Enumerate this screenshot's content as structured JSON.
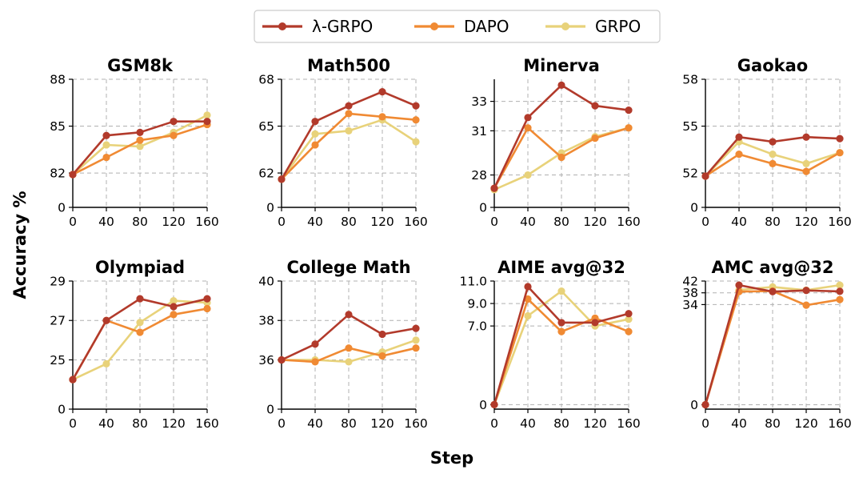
{
  "legend": {
    "entries": [
      {
        "name": "λ-GRPO",
        "color": "#B23A2B"
      },
      {
        "name": "DAPO",
        "color": "#F08A33"
      },
      {
        "name": "GRPO",
        "color": "#E8D27A"
      }
    ]
  },
  "xlabel": "Step",
  "ylabel": "Accuracy %",
  "chart_data": [
    {
      "type": "line",
      "title": "GSM8k",
      "x": [
        0,
        40,
        80,
        120,
        160
      ],
      "xticks": [
        "0",
        "40",
        "80",
        "120",
        "160"
      ],
      "yticks": [
        82,
        85,
        88
      ],
      "ytick_labels": [
        "82",
        "85",
        "88"
      ],
      "zero_label": "0",
      "ylim": [
        79.8,
        88
      ],
      "series": [
        {
          "name": "λ-GRPO",
          "values": [
            81.9,
            84.4,
            84.6,
            85.3,
            85.3
          ]
        },
        {
          "name": "DAPO",
          "values": [
            81.9,
            83.0,
            84.1,
            84.4,
            85.1
          ]
        },
        {
          "name": "GRPO",
          "values": [
            81.9,
            83.8,
            83.7,
            84.6,
            85.7
          ]
        }
      ]
    },
    {
      "type": "line",
      "title": "Math500",
      "x": [
        0,
        40,
        80,
        120,
        160
      ],
      "xticks": [
        "0",
        "40",
        "80",
        "120",
        "160"
      ],
      "yticks": [
        62,
        65,
        68
      ],
      "ytick_labels": [
        "62",
        "65",
        "68"
      ],
      "zero_label": "0",
      "ylim": [
        59.8,
        68
      ],
      "series": [
        {
          "name": "λ-GRPO",
          "values": [
            61.6,
            65.3,
            66.3,
            67.2,
            66.3
          ]
        },
        {
          "name": "DAPO",
          "values": [
            61.6,
            63.8,
            65.8,
            65.6,
            65.4
          ]
        },
        {
          "name": "GRPO",
          "values": [
            61.6,
            64.5,
            64.7,
            65.4,
            64.0
          ]
        }
      ]
    },
    {
      "type": "line",
      "title": "Minerva",
      "x": [
        0,
        40,
        80,
        120,
        160
      ],
      "xticks": [
        "0",
        "40",
        "80",
        "120",
        "160"
      ],
      "yticks": [
        28,
        31,
        33
      ],
      "ytick_labels": [
        "28",
        "31",
        "33"
      ],
      "zero_label": "0",
      "ylim": [
        25.8,
        34.5
      ],
      "series": [
        {
          "name": "λ-GRPO",
          "values": [
            27.1,
            31.9,
            34.1,
            32.7,
            32.4
          ]
        },
        {
          "name": "DAPO",
          "values": [
            27.1,
            31.2,
            29.2,
            30.5,
            31.2
          ]
        },
        {
          "name": "GRPO",
          "values": [
            27.0,
            28.0,
            29.5,
            30.6,
            31.2
          ]
        }
      ]
    },
    {
      "type": "line",
      "title": "Gaokao",
      "x": [
        0,
        40,
        80,
        120,
        160
      ],
      "xticks": [
        "0",
        "40",
        "80",
        "120",
        "160"
      ],
      "yticks": [
        52,
        55,
        58
      ],
      "ytick_labels": [
        "52",
        "55",
        "58"
      ],
      "zero_label": "0",
      "ylim": [
        49.8,
        58
      ],
      "series": [
        {
          "name": "λ-GRPO",
          "values": [
            51.8,
            54.3,
            54.0,
            54.3,
            54.2
          ]
        },
        {
          "name": "DAPO",
          "values": [
            51.8,
            53.2,
            52.6,
            52.1,
            53.3
          ]
        },
        {
          "name": "GRPO",
          "values": [
            51.8,
            54.0,
            53.2,
            52.6,
            53.3
          ]
        }
      ]
    },
    {
      "type": "line",
      "title": "Olympiad",
      "x": [
        0,
        40,
        80,
        120,
        160
      ],
      "xticks": [
        "0",
        "40",
        "80",
        "120",
        "160"
      ],
      "yticks": [
        25,
        27,
        29
      ],
      "ytick_labels": [
        "25",
        "27",
        "29"
      ],
      "zero_label": "0",
      "ylim": [
        22.5,
        29
      ],
      "series": [
        {
          "name": "λ-GRPO",
          "values": [
            24.0,
            27.0,
            28.1,
            27.7,
            28.1
          ]
        },
        {
          "name": "DAPO",
          "values": [
            24.0,
            27.0,
            26.4,
            27.3,
            27.6
          ]
        },
        {
          "name": "GRPO",
          "values": [
            24.0,
            24.8,
            26.9,
            28.0,
            27.9
          ]
        }
      ]
    },
    {
      "type": "line",
      "title": "College Math",
      "x": [
        0,
        40,
        80,
        120,
        160
      ],
      "xticks": [
        "0",
        "40",
        "80",
        "120",
        "160"
      ],
      "yticks": [
        36,
        38,
        40
      ],
      "ytick_labels": [
        "36",
        "38",
        "40"
      ],
      "zero_label": "0",
      "ylim": [
        33.5,
        40
      ],
      "series": [
        {
          "name": "λ-GRPO",
          "values": [
            36.0,
            36.8,
            38.3,
            37.3,
            37.6
          ]
        },
        {
          "name": "DAPO",
          "values": [
            36.0,
            35.9,
            36.6,
            36.2,
            36.6
          ]
        },
        {
          "name": "GRPO",
          "values": [
            36.0,
            36.0,
            35.9,
            36.4,
            37.0
          ]
        }
      ]
    },
    {
      "type": "line",
      "title": "AIME avg@32",
      "x": [
        0,
        40,
        80,
        120,
        160
      ],
      "xticks": [
        "0",
        "40",
        "80",
        "120",
        "160"
      ],
      "yticks": [
        0,
        7.0,
        9.0,
        11.0
      ],
      "ytick_labels": [
        "0",
        "7.0",
        "9.0",
        "11.0"
      ],
      "zero_label": "",
      "ylim": [
        -0.4,
        11.0
      ],
      "series": [
        {
          "name": "λ-GRPO",
          "values": [
            0,
            10.5,
            7.3,
            7.3,
            8.1
          ]
        },
        {
          "name": "DAPO",
          "values": [
            0,
            9.4,
            6.5,
            7.7,
            6.5
          ]
        },
        {
          "name": "GRPO",
          "values": [
            0,
            7.9,
            10.1,
            7.0,
            7.6
          ]
        }
      ]
    },
    {
      "type": "line",
      "title": "AMC avg@32",
      "x": [
        0,
        40,
        80,
        120,
        160
      ],
      "xticks": [
        "0",
        "40",
        "80",
        "120",
        "160"
      ],
      "yticks": [
        0,
        34,
        38,
        42
      ],
      "ytick_labels": [
        "0",
        "34",
        "38",
        "42"
      ],
      "zero_label": "",
      "ylim": [
        -1.5,
        42
      ],
      "series": [
        {
          "name": "λ-GRPO",
          "values": [
            0,
            40.6,
            38.4,
            38.8,
            38.5
          ]
        },
        {
          "name": "DAPO",
          "values": [
            0,
            38.4,
            38.6,
            33.8,
            35.7
          ]
        },
        {
          "name": "GRPO",
          "values": [
            0,
            39.0,
            40.0,
            38.9,
            40.6
          ]
        }
      ]
    }
  ]
}
